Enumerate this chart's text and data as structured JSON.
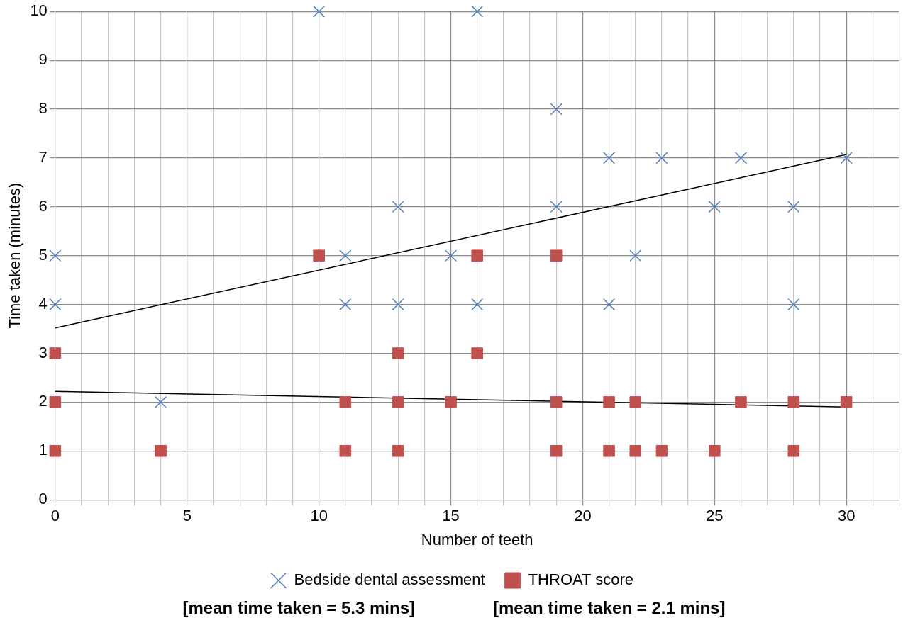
{
  "chart_data": {
    "type": "scatter",
    "xlabel": "Number of teeth",
    "ylabel": "Time taken (minutes)",
    "xlim": [
      0,
      32
    ],
    "xticks": [
      0,
      {
        "value": 1,
        "label": null
      },
      {
        "value": 2,
        "label": null
      },
      {
        "value": 3,
        "label": null
      },
      {
        "value": 4,
        "label": null
      },
      5,
      {
        "value": 6,
        "label": null
      },
      {
        "value": 7,
        "label": null
      },
      {
        "value": 8,
        "label": null
      },
      {
        "value": 9,
        "label": null
      },
      10,
      {
        "value": 11,
        "label": null
      },
      {
        "value": 12,
        "label": null
      },
      {
        "value": 13,
        "label": null
      },
      {
        "value": 14,
        "label": null
      },
      15,
      {
        "value": 16,
        "label": null
      },
      {
        "value": 17,
        "label": null
      },
      {
        "value": 18,
        "label": null
      },
      {
        "value": 19,
        "label": null
      },
      20,
      {
        "value": 21,
        "label": null
      },
      {
        "value": 22,
        "label": null
      },
      {
        "value": 23,
        "label": null
      },
      {
        "value": 24,
        "label": null
      },
      25,
      {
        "value": 26,
        "label": null
      },
      {
        "value": 27,
        "label": null
      },
      {
        "value": 28,
        "label": null
      },
      {
        "value": 29,
        "label": null
      },
      30,
      {
        "value": 31,
        "label": null
      },
      {
        "value": 32,
        "label": null
      }
    ],
    "ylim": [
      0,
      10
    ],
    "yticks": [
      0,
      1,
      2,
      3,
      4,
      5,
      6,
      7,
      8,
      9,
      10
    ],
    "grid": true,
    "legend": "bottom",
    "series": [
      {
        "name": "Bedside dental assessment",
        "marker": "cross",
        "color": "#4f81bd",
        "x": [
          0,
          0,
          4,
          10,
          11,
          11,
          13,
          13,
          15,
          16,
          16,
          19,
          19,
          21,
          21,
          22,
          23,
          25,
          26,
          28,
          28,
          30
        ],
        "values": [
          5,
          4,
          2,
          10,
          5,
          4,
          6,
          4,
          5,
          10,
          4,
          8,
          6,
          7,
          4,
          5,
          7,
          6,
          7,
          6,
          4,
          7
        ]
      },
      {
        "name": "THROAT score",
        "marker": "square",
        "color": "#c0504d",
        "x": [
          0,
          0,
          0,
          4,
          10,
          11,
          11,
          13,
          13,
          13,
          15,
          16,
          16,
          19,
          19,
          19,
          21,
          21,
          22,
          22,
          23,
          25,
          26,
          28,
          28,
          30
        ],
        "values": [
          3,
          2,
          1,
          1,
          5,
          2,
          1,
          3,
          2,
          1,
          2,
          5,
          3,
          5,
          2,
          1,
          2,
          1,
          2,
          1,
          1,
          1,
          2,
          2,
          1,
          2
        ]
      },
      {
        "type": "line",
        "marker": "none",
        "color": "#000000",
        "x": [
          0,
          30
        ],
        "values": [
          3.52,
          7.07
        ]
      },
      {
        "type": "line",
        "marker": "none",
        "color": "#000000",
        "x": [
          0,
          30
        ],
        "values": [
          2.22,
          1.9
        ]
      }
    ],
    "annotations": [
      "[mean time taken = 5.3 mins]",
      "[mean time taken = 2.1 mins]"
    ]
  }
}
